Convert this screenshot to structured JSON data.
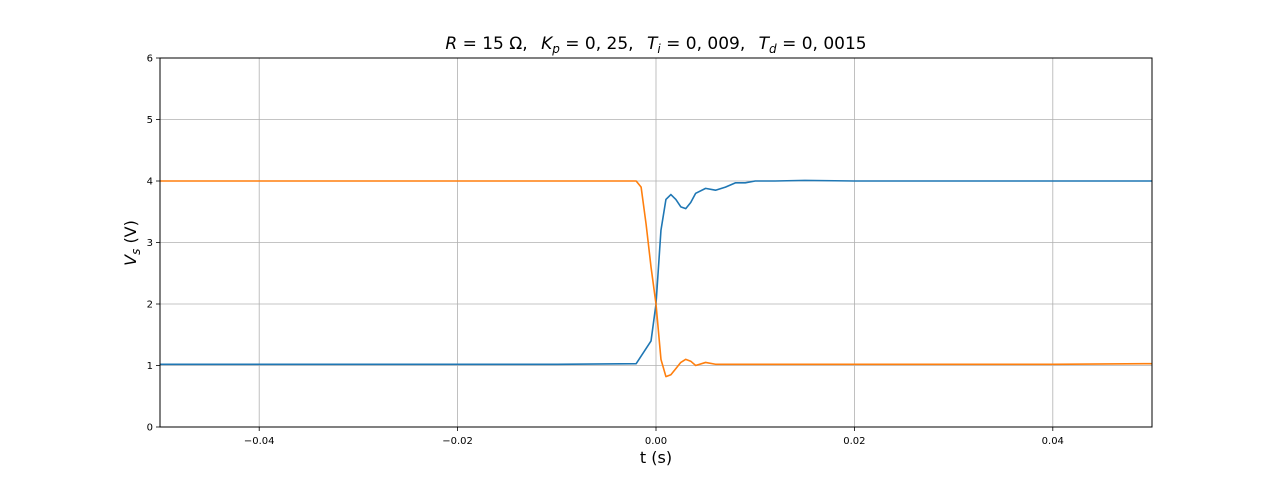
{
  "chart_data": {
    "type": "line",
    "title": {
      "R": "R",
      "R_val": "= 15 Ω,",
      "Kp": "K",
      "Kp_sub": "p",
      "Kp_val": "= 0, 25,",
      "Ti": "T",
      "Ti_sub": "i",
      "Ti_val": "= 0, 009,",
      "Td": "T",
      "Td_sub": "d",
      "Td_val": "= 0, 0015"
    },
    "xlabel": "t (s)",
    "ylabel": {
      "main": "V",
      "sub": "s",
      "unit": " (V)"
    },
    "xlim": [
      -0.05,
      0.05
    ],
    "ylim": [
      0,
      6
    ],
    "grid": true,
    "x_ticks": [
      {
        "value": -0.04,
        "label": "−0.04"
      },
      {
        "value": -0.02,
        "label": "−0.02"
      },
      {
        "value": 0.0,
        "label": "0.00"
      },
      {
        "value": 0.02,
        "label": "0.02"
      },
      {
        "value": 0.04,
        "label": "0.04"
      }
    ],
    "y_ticks": [
      {
        "value": 0,
        "label": "0"
      },
      {
        "value": 1,
        "label": "1"
      },
      {
        "value": 2,
        "label": "2"
      },
      {
        "value": 3,
        "label": "3"
      },
      {
        "value": 4,
        "label": "4"
      },
      {
        "value": 5,
        "label": "5"
      },
      {
        "value": 6,
        "label": "6"
      }
    ],
    "series": [
      {
        "color": "#1f77b4",
        "x": [
          -0.05,
          -0.04,
          -0.03,
          -0.02,
          -0.01,
          -0.002,
          -0.0005,
          0.0,
          0.0005,
          0.001,
          0.0015,
          0.002,
          0.0025,
          0.003,
          0.0035,
          0.004,
          0.005,
          0.006,
          0.007,
          0.008,
          0.009,
          0.01,
          0.012,
          0.015,
          0.02,
          0.03,
          0.04,
          0.05
        ],
        "y": [
          1.02,
          1.02,
          1.02,
          1.02,
          1.02,
          1.03,
          1.4,
          2.0,
          3.2,
          3.7,
          3.78,
          3.7,
          3.58,
          3.55,
          3.65,
          3.8,
          3.88,
          3.85,
          3.9,
          3.97,
          3.97,
          4.0,
          4.0,
          4.01,
          4.0,
          4.0,
          4.0,
          4.0
        ]
      },
      {
        "color": "#ff7f0e",
        "x": [
          -0.05,
          -0.04,
          -0.03,
          -0.02,
          -0.01,
          -0.002,
          -0.0015,
          -0.001,
          -0.0005,
          0.0,
          0.0005,
          0.001,
          0.0015,
          0.002,
          0.0025,
          0.003,
          0.0035,
          0.004,
          0.005,
          0.006,
          0.007,
          0.01,
          0.02,
          0.03,
          0.04,
          0.05
        ],
        "y": [
          4.0,
          4.0,
          4.0,
          4.0,
          4.0,
          4.0,
          3.9,
          3.3,
          2.6,
          2.0,
          1.1,
          0.82,
          0.85,
          0.95,
          1.05,
          1.1,
          1.07,
          1.0,
          1.05,
          1.02,
          1.02,
          1.02,
          1.02,
          1.02,
          1.02,
          1.03
        ]
      }
    ]
  }
}
